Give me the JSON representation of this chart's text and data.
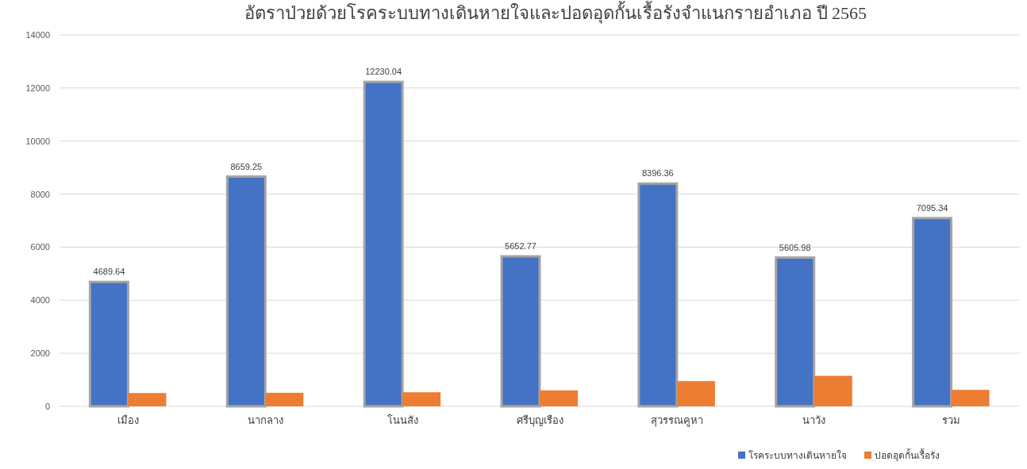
{
  "chart_data": {
    "type": "bar",
    "title": "อัตราป่วยด้วยโรคระบบทางเดินหายใจและปอดอุดกั้นเรื้อรังจำแนกรายอำเภอ ปี 2565",
    "categories": [
      "เมือง",
      "นากลาง",
      "โนนสัง",
      "ศรีบุญเรือง",
      "สุวรรณคูหา",
      "นาวัง",
      "รวม"
    ],
    "series": [
      {
        "name": "โรคระบบทางเดินหายใจ",
        "color": "#4472c4",
        "values": [
          4689.64,
          8659.25,
          12230.04,
          5652.77,
          8396.36,
          5605.98,
          7095.34
        ],
        "value_labels": [
          "4689.64",
          "8659.25",
          "12230.04",
          "5652.77",
          "8396.36",
          "5605.98",
          "7095.34"
        ]
      },
      {
        "name": "ปอดอุดกั้นเรื้อรัง",
        "color": "#ed7d31",
        "values": [
          500,
          510,
          530,
          600,
          950,
          1150,
          620
        ]
      }
    ],
    "ylim": [
      0,
      14000
    ],
    "yticks": [
      0,
      2000,
      4000,
      6000,
      8000,
      10000,
      12000,
      14000
    ],
    "grid": "y",
    "legend": "bottom right"
  }
}
